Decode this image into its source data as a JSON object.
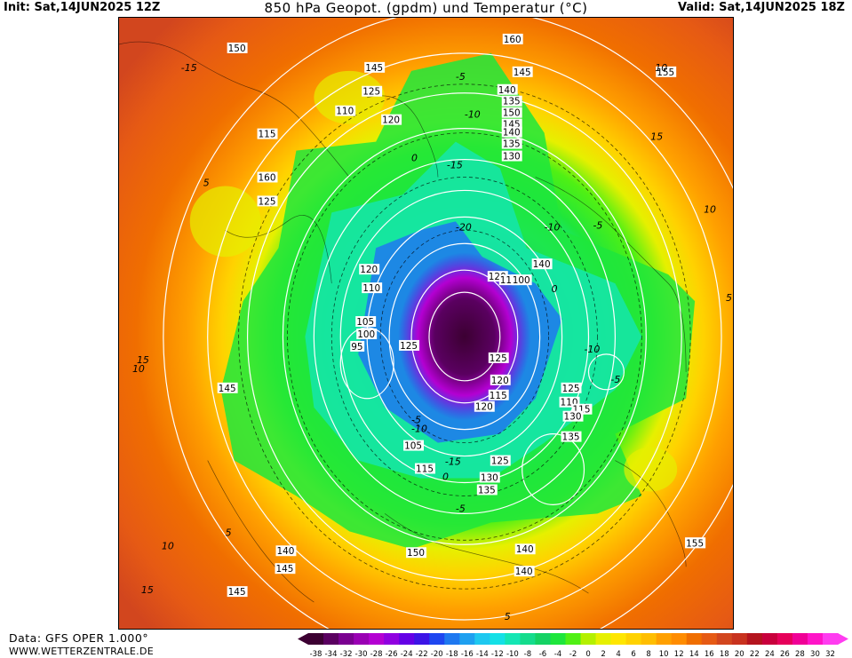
{
  "header": {
    "init": "Init: Sat,14JUN2025 12Z",
    "title": "850 hPa Geopot. (gpdm) und Temperatur (°C)",
    "valid": "Valid: Sat,14JUN2025 18Z"
  },
  "footer": {
    "source": "Data: GFS OPER 1.000°",
    "site": "WWW.WETTERZENTRALE.DE"
  },
  "legend": {
    "ticks": [
      "-38",
      "-34",
      "-32",
      "-30",
      "-28",
      "-26",
      "-24",
      "-22",
      "-20",
      "-18",
      "-16",
      "-14",
      "-12",
      "-10",
      "-8",
      "-6",
      "-4",
      "-2",
      "0",
      "2",
      "4",
      "6",
      "8",
      "10",
      "12",
      "14",
      "16",
      "18",
      "20",
      "22",
      "24",
      "26",
      "28",
      "30",
      "32"
    ],
    "colors": [
      "#3c0032",
      "#5a0060",
      "#7a0090",
      "#9a00b4",
      "#b400d2",
      "#9000e0",
      "#6400e6",
      "#3c14e6",
      "#1e46f0",
      "#1e78f0",
      "#1ea0f0",
      "#1ec8f0",
      "#14e0e6",
      "#14e6b4",
      "#14dc8c",
      "#14d264",
      "#1ee63c",
      "#50f014",
      "#b4f000",
      "#e6f000",
      "#ffe600",
      "#ffd200",
      "#ffbe00",
      "#ffa000",
      "#ff8c00",
      "#f06e00",
      "#e65a14",
      "#d2461e",
      "#c8321e",
      "#b4141e",
      "#c8003c",
      "#e6005a",
      "#f00096",
      "#ff14c8",
      "#ff3cf0"
    ]
  },
  "map": {
    "geopotential_labels": [
      {
        "text": "150"
      },
      {
        "text": "160"
      },
      {
        "text": "145"
      },
      {
        "text": "155"
      },
      {
        "text": "145"
      },
      {
        "text": "140"
      },
      {
        "text": "135"
      },
      {
        "text": "150"
      },
      {
        "text": "145"
      },
      {
        "text": "140"
      },
      {
        "text": "135"
      },
      {
        "text": "130"
      },
      {
        "text": "125"
      },
      {
        "text": "120"
      },
      {
        "text": "115"
      },
      {
        "text": "110"
      },
      {
        "text": "160"
      },
      {
        "text": "125"
      },
      {
        "text": "120"
      },
      {
        "text": "110"
      },
      {
        "text": "105"
      },
      {
        "text": "100"
      },
      {
        "text": "95"
      },
      {
        "text": "125"
      },
      {
        "text": "120"
      },
      {
        "text": "115"
      },
      {
        "text": "100"
      },
      {
        "text": "140"
      },
      {
        "text": "125"
      },
      {
        "text": "120"
      },
      {
        "text": "115"
      },
      {
        "text": "120"
      },
      {
        "text": "125"
      },
      {
        "text": "110"
      },
      {
        "text": "115"
      },
      {
        "text": "130"
      },
      {
        "text": "135"
      },
      {
        "text": "145"
      },
      {
        "text": "105"
      },
      {
        "text": "115"
      },
      {
        "text": "125"
      },
      {
        "text": "130"
      },
      {
        "text": "135"
      },
      {
        "text": "140"
      },
      {
        "text": "140"
      },
      {
        "text": "145"
      },
      {
        "text": "150"
      },
      {
        "text": "140"
      },
      {
        "text": "145"
      },
      {
        "text": "150"
      },
      {
        "text": "155"
      }
    ],
    "temperature_labels": [
      {
        "text": "-15"
      },
      {
        "text": "-10"
      },
      {
        "text": "-5"
      },
      {
        "text": "0"
      },
      {
        "text": "-20"
      },
      {
        "text": "-15"
      },
      {
        "text": "-10"
      },
      {
        "text": "-5"
      },
      {
        "text": "0"
      },
      {
        "text": "5"
      },
      {
        "text": "10"
      },
      {
        "text": "15"
      },
      {
        "text": "10"
      },
      {
        "text": "5"
      },
      {
        "text": "15"
      },
      {
        "text": "10"
      },
      {
        "text": "5"
      },
      {
        "text": "-5"
      },
      {
        "text": "-15"
      },
      {
        "text": "-10"
      },
      {
        "text": "-5"
      },
      {
        "text": "0"
      },
      {
        "text": "-5"
      },
      {
        "text": "-10"
      },
      {
        "text": "5"
      },
      {
        "text": "10"
      },
      {
        "text": "15"
      }
    ]
  }
}
